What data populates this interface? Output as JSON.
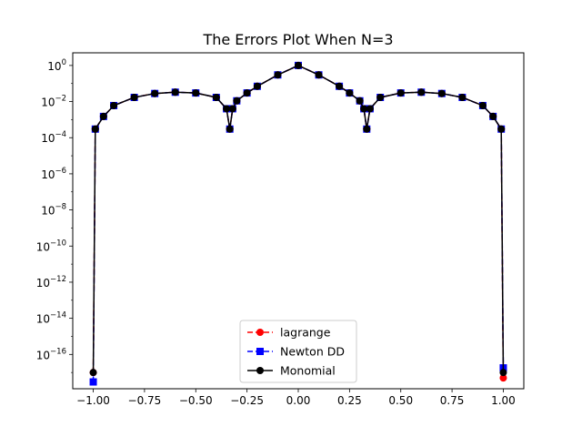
{
  "chart_data": {
    "type": "line",
    "title": "The Errors Plot When N=3",
    "xlabel": "",
    "ylabel": "",
    "xlim": [
      -1.1,
      1.1
    ],
    "ylim_log10": [
      -17.9,
      0.7
    ],
    "y_scale": "log",
    "grid": false,
    "legend_position": "lower center",
    "x_ticks": [
      -1.0,
      -0.75,
      -0.5,
      -0.25,
      0.0,
      0.25,
      0.5,
      0.75,
      1.0
    ],
    "x_tick_labels": [
      "−1.00",
      "−0.75",
      "−0.50",
      "−0.25",
      "0.00",
      "0.25",
      "0.50",
      "0.75",
      "1.00"
    ],
    "y_ticks_exp": [
      0,
      -2,
      -4,
      -6,
      -8,
      -10,
      -12,
      -14,
      -16
    ],
    "y_tick_base": "10",
    "y_tick_exp_labels": [
      "0",
      "−2",
      "−4",
      "−6",
      "−8",
      "−10",
      "−12",
      "−14",
      "−16"
    ],
    "function_note_nodes": [
      -1.0,
      -0.3333,
      0.3333,
      1.0
    ],
    "series": [
      {
        "name": "lagrange",
        "color": "#ff0000",
        "linestyle": "dashed",
        "marker": "circle",
        "x": [
          -1.0,
          -0.99,
          -0.95,
          -0.9,
          -0.8,
          -0.7,
          -0.6,
          -0.5,
          -0.4,
          -0.35,
          -0.334,
          -0.32,
          -0.3,
          -0.25,
          -0.2,
          -0.1,
          0.0,
          0.1,
          0.2,
          0.25,
          0.3,
          0.32,
          0.334,
          0.35,
          0.4,
          0.5,
          0.6,
          0.7,
          0.8,
          0.9,
          0.95,
          0.99,
          1.0
        ],
        "y": [
          1e-17,
          0.0003,
          0.0015,
          0.006,
          0.017,
          0.028,
          0.033,
          0.03,
          0.017,
          0.004,
          0.0003,
          0.004,
          0.011,
          0.03,
          0.07,
          0.3,
          1.0,
          0.3,
          0.07,
          0.03,
          0.011,
          0.004,
          0.0003,
          0.004,
          0.017,
          0.03,
          0.033,
          0.028,
          0.017,
          0.006,
          0.0015,
          0.0003,
          5e-18
        ]
      },
      {
        "name": "Newton DD",
        "color": "#0000ff",
        "linestyle": "dashed",
        "marker": "square",
        "x": [
          -1.0,
          -0.99,
          -0.95,
          -0.9,
          -0.8,
          -0.7,
          -0.6,
          -0.5,
          -0.4,
          -0.35,
          -0.334,
          -0.32,
          -0.3,
          -0.25,
          -0.2,
          -0.1,
          0.0,
          0.1,
          0.2,
          0.25,
          0.3,
          0.32,
          0.334,
          0.35,
          0.4,
          0.5,
          0.6,
          0.7,
          0.8,
          0.9,
          0.95,
          0.99,
          1.0
        ],
        "y": [
          3e-18,
          0.0003,
          0.0015,
          0.006,
          0.017,
          0.028,
          0.033,
          0.03,
          0.017,
          0.004,
          0.0003,
          0.004,
          0.011,
          0.03,
          0.07,
          0.3,
          1.0,
          0.3,
          0.07,
          0.03,
          0.011,
          0.004,
          0.0003,
          0.004,
          0.017,
          0.03,
          0.033,
          0.028,
          0.017,
          0.006,
          0.0015,
          0.0003,
          1.8e-17
        ]
      },
      {
        "name": "Monomial",
        "color": "#000000",
        "linestyle": "solid",
        "marker": "circle",
        "x": [
          -1.0,
          -0.99,
          -0.95,
          -0.9,
          -0.8,
          -0.7,
          -0.6,
          -0.5,
          -0.4,
          -0.35,
          -0.334,
          -0.32,
          -0.3,
          -0.25,
          -0.2,
          -0.1,
          0.0,
          0.1,
          0.2,
          0.25,
          0.3,
          0.32,
          0.334,
          0.35,
          0.4,
          0.5,
          0.6,
          0.7,
          0.8,
          0.9,
          0.95,
          0.99,
          1.0
        ],
        "y": [
          1e-17,
          0.0003,
          0.0015,
          0.006,
          0.017,
          0.028,
          0.033,
          0.03,
          0.017,
          0.004,
          0.0003,
          0.004,
          0.011,
          0.03,
          0.07,
          0.3,
          1.0,
          0.3,
          0.07,
          0.03,
          0.011,
          0.004,
          0.0003,
          0.004,
          0.017,
          0.03,
          0.033,
          0.028,
          0.017,
          0.006,
          0.0015,
          0.0003,
          1e-17
        ]
      }
    ]
  }
}
